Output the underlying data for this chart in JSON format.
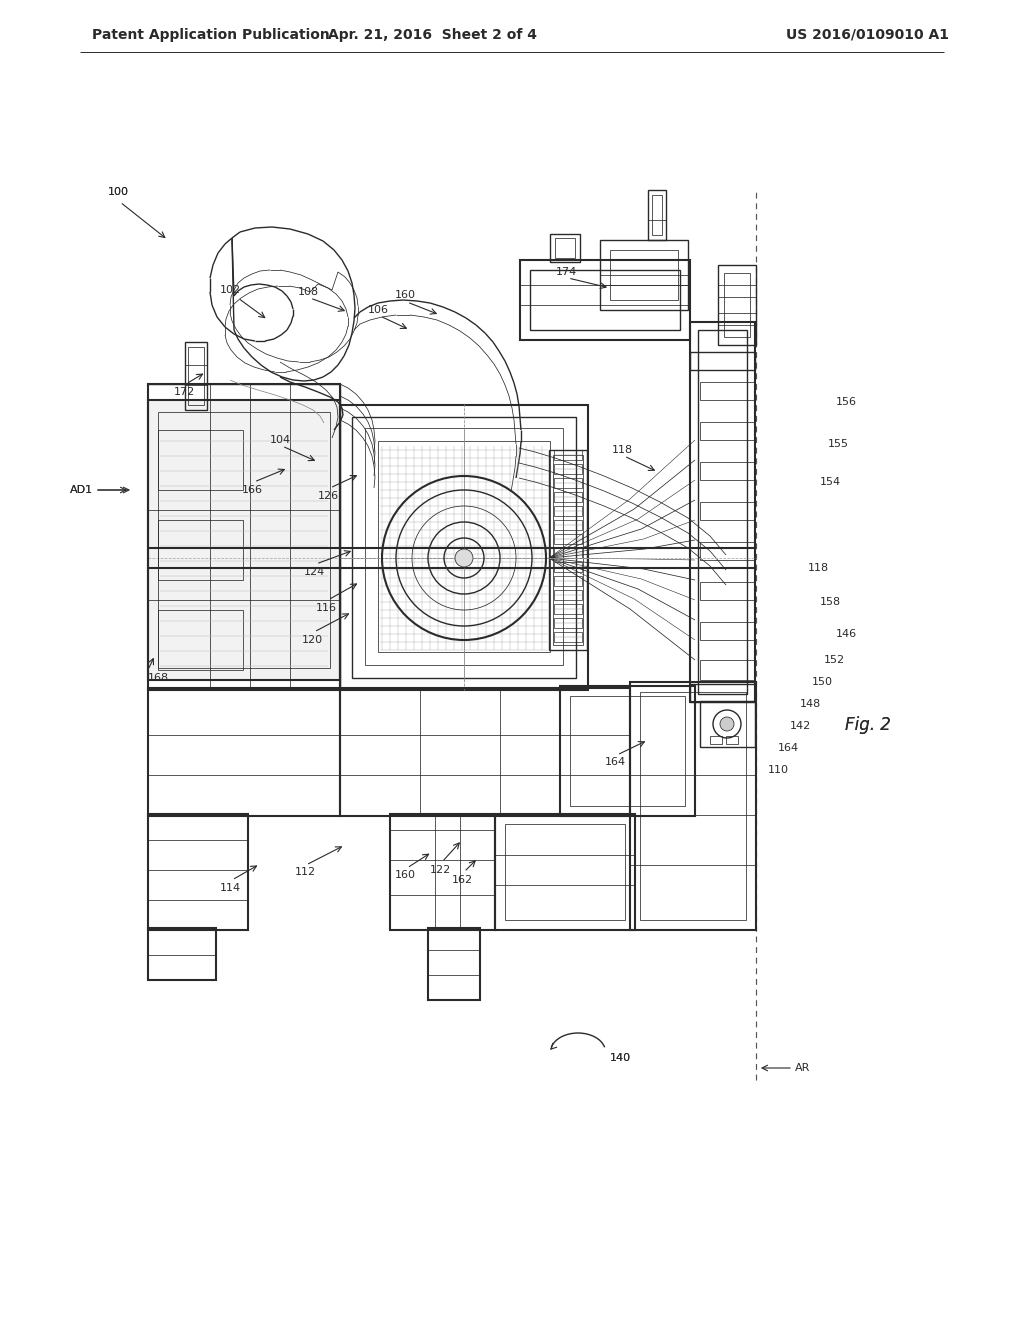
{
  "bg": "#ffffff",
  "lc": "#2a2a2a",
  "header_left": "Patent Application Publication",
  "header_center": "Apr. 21, 2016  Sheet 2 of 4",
  "header_right": "US 2016/0109010 A1",
  "fig_label": "Fig. 2",
  "label_fs": 8.0,
  "header_fs": 10.0,
  "fig_fs": 12.0
}
